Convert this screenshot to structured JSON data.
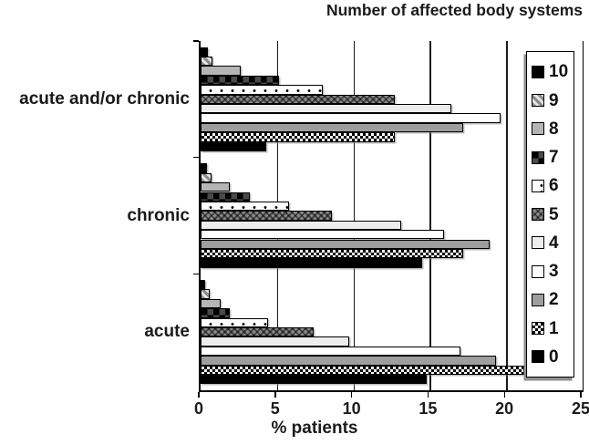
{
  "chart_data": {
    "type": "bar",
    "orientation": "horizontal",
    "title": "Number of affected body systems",
    "xlabel": "% patients",
    "xlim": [
      0,
      25
    ],
    "xticks": [
      0,
      5,
      10,
      15,
      20,
      25
    ],
    "grid": true,
    "legend_position": "right-inside",
    "categories": [
      "acute and/or chronic",
      "chronic",
      "acute"
    ],
    "series": [
      {
        "name": "10",
        "pattern": "solid-black",
        "values": [
          0.5,
          0.4,
          0.3
        ]
      },
      {
        "name": "9",
        "pattern": "diagonal-hatch",
        "values": [
          0.8,
          0.7,
          0.6
        ]
      },
      {
        "name": "8",
        "pattern": "light-gray",
        "values": [
          2.6,
          1.9,
          1.3
        ]
      },
      {
        "name": "7",
        "pattern": "checker-large",
        "values": [
          5.1,
          3.2,
          1.9
        ]
      },
      {
        "name": "6",
        "pattern": "dots-on-white",
        "values": [
          8.0,
          5.8,
          4.4
        ]
      },
      {
        "name": "5",
        "pattern": "zigzag-gray",
        "values": [
          12.7,
          8.6,
          7.4
        ]
      },
      {
        "name": "4",
        "pattern": "near-white",
        "values": [
          16.4,
          13.1,
          9.7
        ]
      },
      {
        "name": "3",
        "pattern": "white",
        "values": [
          19.6,
          15.9,
          17.0
        ]
      },
      {
        "name": "2",
        "pattern": "mid-gray",
        "values": [
          17.2,
          18.9,
          19.3
        ]
      },
      {
        "name": "1",
        "pattern": "checker-small",
        "values": [
          12.7,
          17.2,
          21.2
        ]
      },
      {
        "name": "0",
        "pattern": "solid-black",
        "values": [
          4.3,
          14.5,
          14.8
        ]
      }
    ],
    "colors": {
      "axis": "#000000",
      "grid": "#1a1a1a",
      "bar_border": "#000000",
      "light_gray": "#b5b5b5",
      "mid_gray": "#9e9e9e",
      "near_white": "#ededed",
      "zigzag_gray": "#8a8a8a",
      "checker_dark_gray": "#4a4a4a",
      "legend_shadow": "#8f8f8f",
      "background": "#ffffff"
    }
  }
}
